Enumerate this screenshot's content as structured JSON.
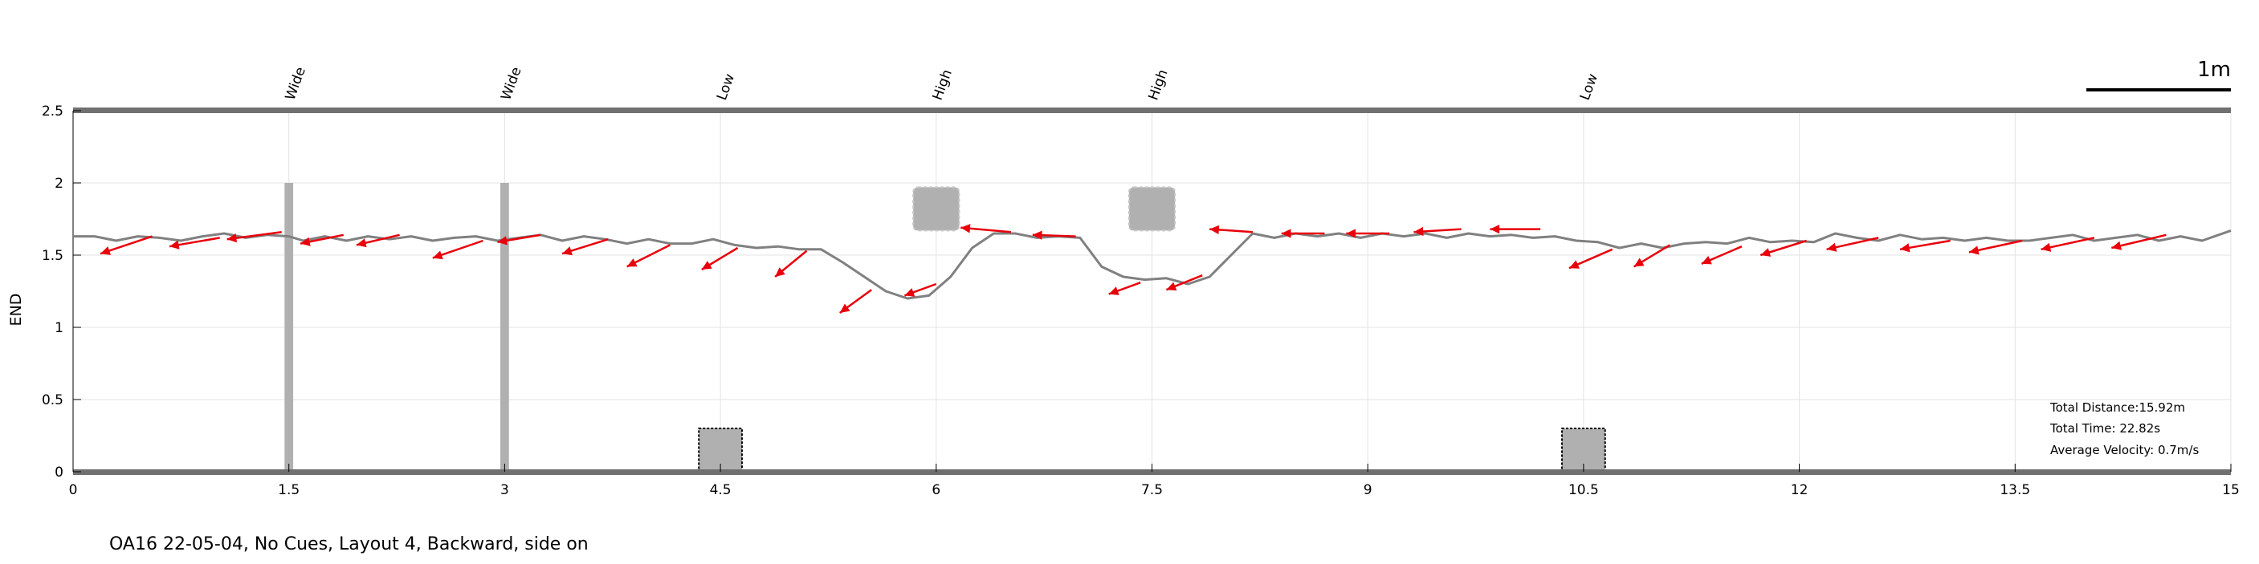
{
  "chart_data": {
    "type": "line",
    "ylabel": "END",
    "xlim": [
      0,
      15
    ],
    "ylim": [
      0,
      2.5
    ],
    "x_ticks": [
      0,
      1.5,
      3,
      4.5,
      6,
      7.5,
      9,
      10.5,
      12,
      13.5,
      15
    ],
    "x_tick_labels": [
      "0",
      "1.5",
      "3",
      "4.5",
      "6",
      "7.5",
      "9",
      "10.5",
      "12",
      "13.5",
      "15"
    ],
    "y_ticks": [
      0,
      0.5,
      1,
      1.5,
      2,
      2.5
    ],
    "y_tick_labels": [
      "0",
      "0.5",
      "1",
      "1.5",
      "2",
      "2.5"
    ],
    "grid": true,
    "obstacle_labels": [
      {
        "x": 1.5,
        "text": "Wide"
      },
      {
        "x": 3.0,
        "text": "Wide"
      },
      {
        "x": 4.5,
        "text": "Low"
      },
      {
        "x": 6.0,
        "text": "High"
      },
      {
        "x": 7.5,
        "text": "High"
      },
      {
        "x": 10.5,
        "text": "Low"
      }
    ],
    "obstacles": [
      {
        "kind": "wide",
        "x": [
          1.47,
          1.53
        ],
        "y": [
          0,
          2.0
        ]
      },
      {
        "kind": "wide",
        "x": [
          2.97,
          3.03
        ],
        "y": [
          0,
          2.0
        ]
      },
      {
        "kind": "low",
        "x": [
          4.35,
          4.65
        ],
        "y": [
          0,
          0.3
        ]
      },
      {
        "kind": "low",
        "x": [
          10.35,
          10.65
        ],
        "y": [
          0,
          0.3
        ]
      },
      {
        "kind": "high",
        "x": [
          5.84,
          6.16
        ],
        "y": [
          1.67,
          1.97
        ]
      },
      {
        "kind": "high",
        "x": [
          7.34,
          7.66
        ],
        "y": [
          1.67,
          1.97
        ]
      }
    ],
    "series": [
      {
        "x": [
          0,
          0.15,
          0.3,
          0.45,
          0.6,
          0.75,
          0.9,
          1.05,
          1.2,
          1.35,
          1.5,
          1.6,
          1.75,
          1.9,
          2.05,
          2.2,
          2.35,
          2.5,
          2.65,
          2.8,
          2.95,
          3.1,
          3.25,
          3.4,
          3.55,
          3.7,
          3.85,
          4.0,
          4.15,
          4.3,
          4.45,
          4.6,
          4.75,
          4.9,
          5.05,
          5.2,
          5.35,
          5.5,
          5.65,
          5.8,
          5.95,
          6.1,
          6.25,
          6.4,
          6.55,
          6.7,
          6.85,
          7.0,
          7.15,
          7.3,
          7.45,
          7.6,
          7.75,
          7.9,
          8.05,
          8.2,
          8.35,
          8.5,
          8.65,
          8.8,
          8.95,
          9.1,
          9.25,
          9.4,
          9.55,
          9.7,
          9.85,
          10.0,
          10.15,
          10.3,
          10.45,
          10.6,
          10.75,
          10.9,
          11.05,
          11.2,
          11.35,
          11.5,
          11.65,
          11.8,
          11.95,
          12.1,
          12.25,
          12.4,
          12.55,
          12.7,
          12.85,
          13.0,
          13.15,
          13.3,
          13.45,
          13.6,
          13.75,
          13.9,
          14.05,
          14.2,
          14.35,
          14.5,
          14.65,
          14.8,
          15.0
        ],
        "y": [
          1.63,
          1.63,
          1.6,
          1.63,
          1.62,
          1.6,
          1.63,
          1.65,
          1.62,
          1.64,
          1.63,
          1.6,
          1.63,
          1.6,
          1.63,
          1.61,
          1.63,
          1.6,
          1.62,
          1.63,
          1.6,
          1.62,
          1.64,
          1.6,
          1.63,
          1.61,
          1.58,
          1.61,
          1.58,
          1.58,
          1.61,
          1.57,
          1.55,
          1.56,
          1.54,
          1.54,
          1.45,
          1.35,
          1.25,
          1.2,
          1.22,
          1.35,
          1.55,
          1.65,
          1.65,
          1.62,
          1.63,
          1.62,
          1.42,
          1.35,
          1.33,
          1.34,
          1.3,
          1.35,
          1.5,
          1.65,
          1.62,
          1.65,
          1.63,
          1.65,
          1.62,
          1.65,
          1.63,
          1.65,
          1.62,
          1.65,
          1.63,
          1.64,
          1.62,
          1.63,
          1.6,
          1.59,
          1.55,
          1.58,
          1.55,
          1.58,
          1.59,
          1.58,
          1.62,
          1.59,
          1.6,
          1.59,
          1.65,
          1.62,
          1.6,
          1.64,
          1.61,
          1.62,
          1.6,
          1.62,
          1.6,
          1.6,
          1.62,
          1.64,
          1.6,
          1.62,
          1.64,
          1.6,
          1.63,
          1.6,
          1.67
        ],
        "color": "#808080"
      }
    ],
    "arrows": [
      {
        "x": 0.55,
        "y": 1.63,
        "dx": -0.36,
        "dy": -0.12
      },
      {
        "x": 1.02,
        "y": 1.62,
        "dx": -0.35,
        "dy": -0.06
      },
      {
        "x": 1.45,
        "y": 1.66,
        "dx": -0.38,
        "dy": -0.05
      },
      {
        "x": 1.88,
        "y": 1.64,
        "dx": -0.3,
        "dy": -0.06
      },
      {
        "x": 2.27,
        "y": 1.64,
        "dx": -0.3,
        "dy": -0.07
      },
      {
        "x": 2.85,
        "y": 1.6,
        "dx": -0.35,
        "dy": -0.12
      },
      {
        "x": 3.25,
        "y": 1.64,
        "dx": -0.3,
        "dy": -0.05
      },
      {
        "x": 3.72,
        "y": 1.61,
        "dx": -0.32,
        "dy": -0.1
      },
      {
        "x": 4.15,
        "y": 1.57,
        "dx": -0.3,
        "dy": -0.15
      },
      {
        "x": 4.62,
        "y": 1.55,
        "dx": -0.25,
        "dy": -0.15
      },
      {
        "x": 5.1,
        "y": 1.53,
        "dx": -0.22,
        "dy": -0.18
      },
      {
        "x": 5.55,
        "y": 1.26,
        "dx": -0.22,
        "dy": -0.16
      },
      {
        "x": 6.0,
        "y": 1.3,
        "dx": -0.22,
        "dy": -0.08
      },
      {
        "x": 6.52,
        "y": 1.66,
        "dx": -0.35,
        "dy": 0.03
      },
      {
        "x": 6.97,
        "y": 1.63,
        "dx": -0.3,
        "dy": 0.01
      },
      {
        "x": 7.42,
        "y": 1.31,
        "dx": -0.22,
        "dy": -0.08
      },
      {
        "x": 7.85,
        "y": 1.36,
        "dx": -0.25,
        "dy": -0.1
      },
      {
        "x": 8.2,
        "y": 1.66,
        "dx": -0.3,
        "dy": 0.02
      },
      {
        "x": 8.7,
        "y": 1.65,
        "dx": -0.3,
        "dy": 0.0
      },
      {
        "x": 9.15,
        "y": 1.65,
        "dx": -0.3,
        "dy": 0.0
      },
      {
        "x": 9.65,
        "y": 1.68,
        "dx": -0.33,
        "dy": -0.02
      },
      {
        "x": 10.2,
        "y": 1.68,
        "dx": -0.35,
        "dy": 0.0
      },
      {
        "x": 10.7,
        "y": 1.54,
        "dx": -0.3,
        "dy": -0.13
      },
      {
        "x": 11.1,
        "y": 1.57,
        "dx": -0.25,
        "dy": -0.15
      },
      {
        "x": 11.6,
        "y": 1.56,
        "dx": -0.28,
        "dy": -0.12
      },
      {
        "x": 12.05,
        "y": 1.6,
        "dx": -0.32,
        "dy": -0.1
      },
      {
        "x": 12.55,
        "y": 1.62,
        "dx": -0.36,
        "dy": -0.08
      },
      {
        "x": 13.05,
        "y": 1.6,
        "dx": -0.35,
        "dy": -0.06
      },
      {
        "x": 13.55,
        "y": 1.6,
        "dx": -0.37,
        "dy": -0.08
      },
      {
        "x": 14.05,
        "y": 1.62,
        "dx": -0.37,
        "dy": -0.08
      },
      {
        "x": 14.55,
        "y": 1.64,
        "dx": -0.38,
        "dy": -0.09
      }
    ],
    "arrow_color": "#e8000b",
    "obstacle_color": "#b0b0b0",
    "stats": [
      "Total Distance:15.92m",
      "Total Time: 22.82s",
      "Average Velocity: 0.7m/s"
    ],
    "scale_bar_label": "1m"
  },
  "caption": "OA16 22-05-04, No Cues, Layout 4, Backward, side on"
}
